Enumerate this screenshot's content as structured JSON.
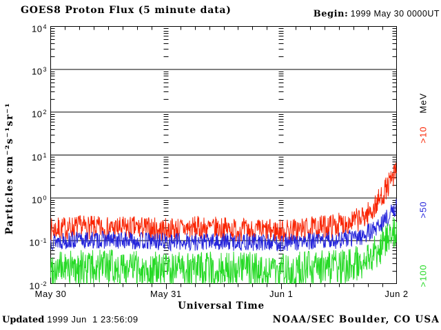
{
  "header": {
    "title": "GOES8 Proton Flux (5 minute data)",
    "begin_label": "Begin:",
    "begin_value": "1999 May 30 0000UT"
  },
  "axes": {
    "xlabel": "Universal Time",
    "ylabel": "Particles cm⁻²s⁻¹sr⁻¹"
  },
  "footer": {
    "updated_label": "Updated",
    "updated_value": " 1999 Jun  1 23:56:09",
    "credit": "NOAA/SEC Boulder, CO USA"
  },
  "legend": {
    "unit": "MeV",
    "unit_color": "#000000",
    "items": [
      {
        "label": ">10",
        "color": "#f92504"
      },
      {
        "label": ">50",
        "color": "#2424da"
      },
      {
        "label": ">100",
        "color": "#26da26"
      }
    ]
  },
  "chart_data": {
    "type": "line",
    "title": "GOES8 Proton Flux (5 minute data)",
    "begin": "1999 May 30 0000UT",
    "xlabel": "Universal Time",
    "ylabel": "Particles cm^-2 s^-1 sr^-1",
    "x_days": 3,
    "x_tick_labels": [
      "May 30",
      "May 31",
      "Jun 1",
      "Jun 2"
    ],
    "x_minor_tick_hours": 3,
    "y_scale": "log",
    "ylim": [
      0.01,
      10000
    ],
    "y_tick_exponents": [
      "4",
      "3",
      "2",
      "1",
      "0",
      "-1",
      "-2"
    ],
    "cadence_minutes": 5,
    "grid": "solid horizontal lines each decade; dashed vertical tick columns at day boundaries",
    "legend_position": "right-margin-rotated",
    "series": [
      {
        "name": ">10 MeV",
        "label": ">10",
        "color": "#f92504",
        "seed": 7,
        "noise_dex": 0.28,
        "trend_day_value": [
          [
            0,
            0.18
          ],
          [
            0.25,
            0.21
          ],
          [
            0.5,
            0.19
          ],
          [
            0.75,
            0.2
          ],
          [
            1,
            0.18
          ],
          [
            1.25,
            0.2
          ],
          [
            1.5,
            0.19
          ],
          [
            1.75,
            0.17
          ],
          [
            2,
            0.17
          ],
          [
            2.25,
            0.19
          ],
          [
            2.4,
            0.22
          ],
          [
            2.55,
            0.25
          ],
          [
            2.7,
            0.33
          ],
          [
            2.8,
            0.55
          ],
          [
            2.85,
            0.9
          ],
          [
            2.9,
            1.5
          ],
          [
            2.95,
            2.4
          ],
          [
            3,
            4.2
          ]
        ]
      },
      {
        "name": ">50 MeV",
        "label": ">50",
        "color": "#2424da",
        "seed": 13,
        "noise_dex": 0.21,
        "trend_day_value": [
          [
            0,
            0.1
          ],
          [
            0.5,
            0.105
          ],
          [
            1,
            0.095
          ],
          [
            1.5,
            0.095
          ],
          [
            2,
            0.09
          ],
          [
            2.25,
            0.095
          ],
          [
            2.5,
            0.105
          ],
          [
            2.7,
            0.13
          ],
          [
            2.8,
            0.18
          ],
          [
            2.9,
            0.3
          ],
          [
            2.95,
            0.42
          ],
          [
            3,
            0.62
          ]
        ]
      },
      {
        "name": ">100 MeV",
        "label": ">100",
        "color": "#26da26",
        "seed": 99,
        "noise_dex": 0.42,
        "floor": 0.0101,
        "trend_day_value": [
          [
            0,
            0.022
          ],
          [
            0.5,
            0.024
          ],
          [
            1,
            0.021
          ],
          [
            1.5,
            0.022
          ],
          [
            2,
            0.02
          ],
          [
            2.5,
            0.024
          ],
          [
            2.7,
            0.032
          ],
          [
            2.8,
            0.05
          ],
          [
            2.9,
            0.09
          ],
          [
            2.95,
            0.13
          ],
          [
            3,
            0.2
          ]
        ]
      }
    ]
  }
}
